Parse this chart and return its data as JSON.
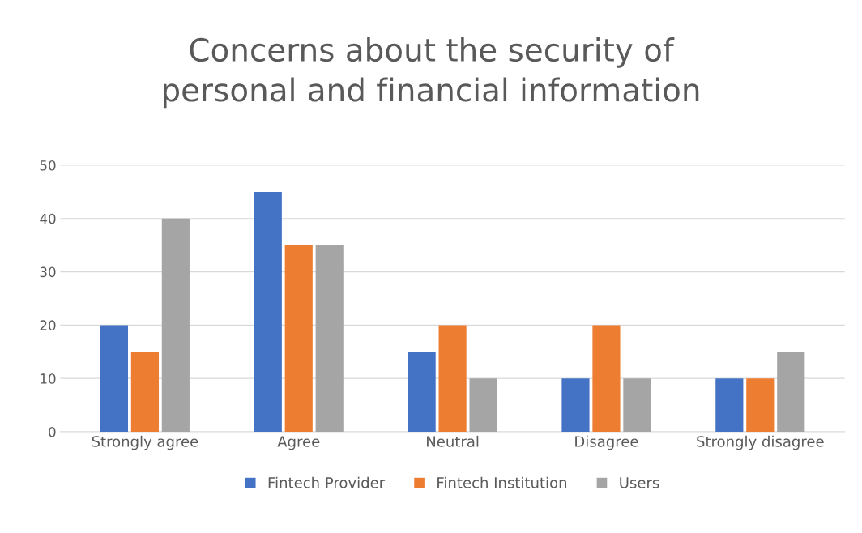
{
  "chart_data": {
    "type": "bar",
    "title": "Concerns about the security of\npersonal and financial information",
    "categories": [
      "Strongly agree",
      "Agree",
      "Neutral",
      "Disagree",
      "Strongly disagree"
    ],
    "series": [
      {
        "name": "Fintech Provider",
        "color": "#4472c4",
        "values": [
          20,
          45,
          15,
          10,
          10
        ]
      },
      {
        "name": "Fintech Institution",
        "color": "#ed7d31",
        "values": [
          15,
          35,
          20,
          20,
          10
        ]
      },
      {
        "name": "Users",
        "color": "#a5a5a5",
        "values": [
          40,
          35,
          10,
          10,
          15
        ]
      }
    ],
    "ylim": [
      0,
      50
    ],
    "yticks": [
      0,
      10,
      20,
      30,
      40,
      50
    ],
    "grid": "y",
    "legend": "bottom"
  }
}
